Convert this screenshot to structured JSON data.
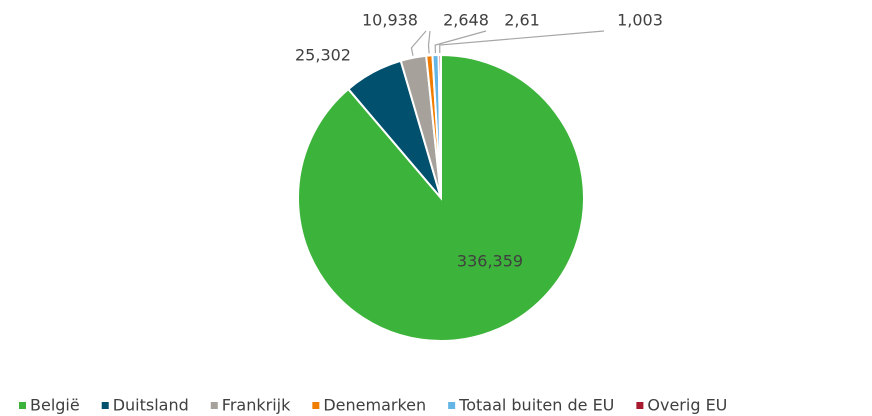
{
  "chart_data": {
    "type": "pie",
    "categories": [
      "België",
      "Duitsland",
      "Frankrijk",
      "Denemarken",
      "Totaal buiten de EU",
      "Overig EU"
    ],
    "values": [
      336.359,
      25.302,
      10.938,
      2.648,
      2.61,
      1.003
    ],
    "value_labels": [
      "336,359",
      "25,302",
      "10,938",
      "2,648",
      "2,61",
      "1,003"
    ],
    "colors": [
      "#3cb33a",
      "#00506e",
      "#a7a19b",
      "#f07d00",
      "#62b5e5",
      "#a6192e"
    ],
    "legend": "bottom"
  }
}
